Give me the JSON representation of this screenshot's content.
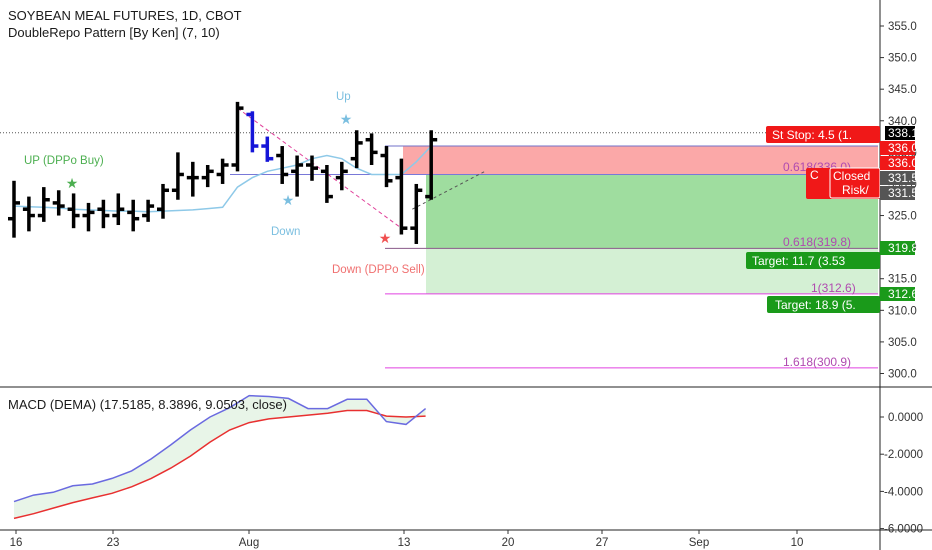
{
  "header": {
    "symbol_title": "SOYBEAN MEAL FUTURES, 1D, CBOT",
    "indicator_title": "DoubleRepo Pattern [By Ken] (7, 10)"
  },
  "macd_panel": {
    "title": "MACD (DEMA) (17.5185, 8.3896, 9.0503, close)"
  },
  "colors": {
    "bull_bar": "#000000",
    "repo_bar": "#1515d8",
    "ma_line": "#8ec9e8",
    "stop_zone": "#fba8a8",
    "target_zone": "#9fdd9f",
    "target_zone_ext": "#d4f0d4",
    "fib_line": "#e040e0",
    "macd_line": "#6a6ae0",
    "signal_line": "#e83030",
    "macd_fill": "#e8f5e8",
    "label_red": "#f01818",
    "label_green": "#1a9a1a",
    "label_dark": "#555555"
  },
  "annotations": {
    "up_buy": "UP (DPPo Buy)",
    "up": "Up",
    "down": "Down",
    "down_sell": "Down (DPPo Sell)",
    "fib_0618_stop": "0.618(336.0)",
    "fib_0618": "0.618(319.8)",
    "fib_1": "1(312.6)",
    "fib_1618": "1.618(300.9)"
  },
  "price_labels": {
    "stop": "St Stop: 4.5 (1.",
    "last": "338.1",
    "p336a": "336.0",
    "p336b": "336.0",
    "closed": "Closed",
    "risk": "Risk/",
    "cr": "C",
    "p3315a": "331.5",
    "p3315b": "331.5",
    "t1_price": "319.8",
    "t1": "Target: 11.7 (3.53",
    "t2_price": "312.6",
    "t2": "Target: 18.9 (5."
  },
  "chart_data": [
    {
      "type": "ohlc",
      "title": "SOYBEAN MEAL FUTURES, 1D, CBOT",
      "x_ticks": [
        "16",
        "23",
        "Aug",
        "13",
        "20",
        "27",
        "Sep",
        "10"
      ],
      "y_ticks": [
        300.0,
        305.0,
        310.0,
        315.0,
        320.0,
        325.0,
        330.0,
        335.0,
        340.0,
        345.0,
        350.0,
        355.0
      ],
      "ylim": [
        297.3,
        357.4
      ],
      "bars": [
        {
          "date": "Jul 16",
          "o": 324.5,
          "h": 330.5,
          "l": 321.5,
          "c": 327.0
        },
        {
          "date": "Jul 17",
          "o": 326.0,
          "h": 328.0,
          "l": 322.5,
          "c": 325.0
        },
        {
          "date": "Jul 18",
          "o": 325.0,
          "h": 329.5,
          "l": 324.0,
          "c": 327.5
        },
        {
          "date": "Jul 19",
          "o": 327.0,
          "h": 329.0,
          "l": 325.0,
          "c": 326.5
        },
        {
          "date": "Jul 20",
          "o": 326.0,
          "h": 328.5,
          "l": 323.0,
          "c": 325.0
        },
        {
          "date": "Jul 23",
          "o": 325.0,
          "h": 327.0,
          "l": 322.5,
          "c": 325.5
        },
        {
          "date": "Jul 24",
          "o": 326.0,
          "h": 327.5,
          "l": 323.0,
          "c": 325.0
        },
        {
          "date": "Jul 25",
          "o": 325.0,
          "h": 328.5,
          "l": 323.5,
          "c": 326.0
        },
        {
          "date": "Jul 26",
          "o": 325.5,
          "h": 327.5,
          "l": 322.5,
          "c": 324.5
        },
        {
          "date": "Jul 27",
          "o": 325.0,
          "h": 327.5,
          "l": 324.0,
          "c": 326.5
        },
        {
          "date": "Jul 30",
          "o": 326.0,
          "h": 330.0,
          "l": 324.5,
          "c": 329.0
        },
        {
          "date": "Jul 31",
          "o": 329.0,
          "h": 335.0,
          "l": 327.5,
          "c": 331.5
        },
        {
          "date": "Aug 1",
          "o": 331.0,
          "h": 333.5,
          "l": 328.0,
          "c": 331.0
        },
        {
          "date": "Aug 2",
          "o": 331.0,
          "h": 333.0,
          "l": 329.5,
          "c": 332.0
        },
        {
          "date": "Aug 3",
          "o": 331.5,
          "h": 334.0,
          "l": 330.0,
          "c": 333.0
        },
        {
          "date": "Aug 6",
          "o": 333.0,
          "h": 343.0,
          "l": 332.0,
          "c": 342.0
        },
        {
          "date": "Aug 7",
          "o": 341.0,
          "h": 341.5,
          "l": 335.0,
          "c": 336.0
        },
        {
          "date": "Aug 8",
          "o": 336.0,
          "h": 337.5,
          "l": 333.5,
          "c": 334.0
        },
        {
          "date": "Aug 9",
          "o": 334.5,
          "h": 336.0,
          "l": 330.0,
          "c": 331.5
        },
        {
          "date": "Aug 10",
          "o": 332.0,
          "h": 334.5,
          "l": 328.0,
          "c": 333.0
        },
        {
          "date": "Aug 13",
          "o": 333.0,
          "h": 334.5,
          "l": 330.5,
          "c": 332.5
        },
        {
          "date": "Aug 14",
          "o": 332.0,
          "h": 333.0,
          "l": 327.0,
          "c": 328.0
        },
        {
          "date": "Aug 15",
          "o": 331.0,
          "h": 333.5,
          "l": 329.0,
          "c": 332.0
        },
        {
          "date": "Aug 16",
          "o": 334.0,
          "h": 338.5,
          "l": 332.5,
          "c": 336.5
        },
        {
          "date": "Aug 17",
          "o": 337.0,
          "h": 338.0,
          "l": 333.0,
          "c": 335.0
        },
        {
          "date": "Aug 20",
          "o": 334.5,
          "h": 336.0,
          "l": 329.5,
          "c": 330.5
        },
        {
          "date": "Aug 21",
          "o": 331.0,
          "h": 334.0,
          "l": 322.0,
          "c": 323.0
        },
        {
          "date": "Aug 22",
          "o": 323.0,
          "h": 330.0,
          "l": 320.5,
          "c": 329.0
        },
        {
          "date": "Aug 23",
          "o": 328.0,
          "h": 338.5,
          "l": 327.5,
          "c": 337.0
        }
      ],
      "repo_bar_dates": [
        "Aug 7",
        "Aug 8"
      ],
      "moving_average": [
        326.5,
        326.4,
        326.3,
        326.2,
        326.0,
        325.9,
        325.8,
        325.7,
        325.7,
        325.6,
        325.7,
        325.8,
        325.9,
        326.1,
        326.3,
        329.5,
        331.0,
        332.0,
        332.5,
        333.0,
        334.0,
        334.5,
        334.0,
        332.5,
        331.5,
        331.5,
        331.5,
        333.5,
        336.0
      ],
      "levels": {
        "stop": 336.0,
        "entry": 331.5,
        "target_1": 319.8,
        "target_2": 312.6,
        "fib_1618": 300.9,
        "last": 338.1
      }
    },
    {
      "type": "line",
      "title": "MACD (DEMA) (17.5185, 8.3896, 9.0503, close)",
      "y_ticks": [
        0.0,
        -2.0,
        -4.0,
        -6.0
      ],
      "ylim": [
        -6.15,
        1.55
      ],
      "series": [
        {
          "name": "MACD",
          "values": [
            -4.55,
            -4.2,
            -4.05,
            -3.7,
            -3.6,
            -3.3,
            -2.9,
            -2.25,
            -1.5,
            -0.7,
            0.0,
            0.5,
            1.15,
            1.1,
            1.0,
            0.45,
            0.45,
            0.95,
            0.95,
            -0.25,
            -0.4,
            0.45
          ]
        },
        {
          "name": "Signal",
          "values": [
            -5.45,
            -5.2,
            -4.9,
            -4.6,
            -4.35,
            -4.1,
            -3.75,
            -3.3,
            -2.75,
            -2.1,
            -1.35,
            -0.7,
            -0.3,
            -0.1,
            0.0,
            0.1,
            0.2,
            0.35,
            0.35,
            0.05,
            0.0,
            0.05
          ]
        }
      ]
    }
  ]
}
